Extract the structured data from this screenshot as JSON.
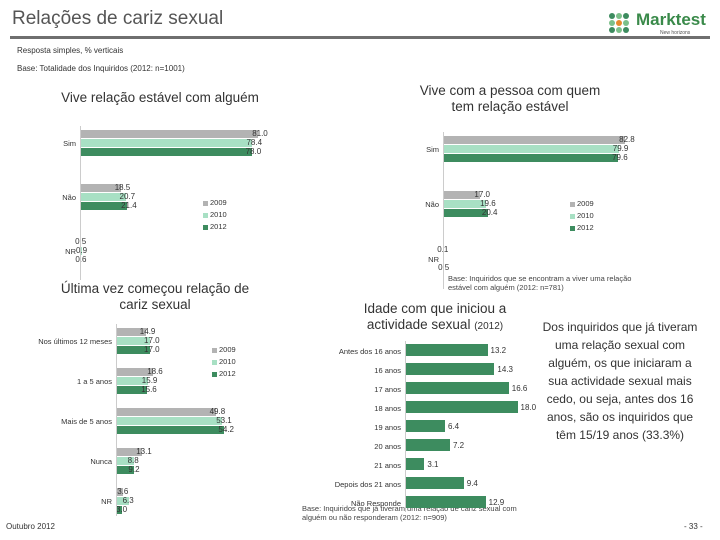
{
  "header": {
    "title": "Relações de cariz sexual",
    "subtitle1": "Resposta simples, % verticais",
    "subtitle2": "Base: Totalidade dos Inquiridos (2012: n=1001)",
    "logo_name": "Marktest",
    "logo_tagline": "New horizons"
  },
  "colors": {
    "s2009": "#b3b3b3",
    "s2010": "#a8e0c4",
    "s2012": "#3d8c5f"
  },
  "footer": {
    "date": "Outubro 2012",
    "page": "- 33 -"
  },
  "side_text": "Dos inquiridos que já tiveram uma relação sexual com alguém, os que iniciaram a sua actividade sexual mais cedo, ou seja, antes dos 16 anos, são os inquiridos que têm 15/19 anos (33.3%)",
  "chart_data": [
    {
      "type": "bar",
      "title": "Vive relação estável com alguém",
      "legend": [
        "2009",
        "2010",
        "2012"
      ],
      "categories": [
        "Sim",
        "Não",
        "NR"
      ],
      "series": [
        {
          "name": "2009",
          "values": [
            81.0,
            18.5,
            0.5
          ],
          "labels": [
            "81.0",
            "18.5",
            "0.5"
          ]
        },
        {
          "name": "2010",
          "values": [
            78.4,
            20.7,
            0.9
          ],
          "labels": [
            "78.4",
            "20.7",
            "0.9"
          ]
        },
        {
          "name": "2012",
          "values": [
            78.0,
            21.4,
            0.6
          ],
          "labels": [
            "78.0",
            "21.4",
            "0.6"
          ]
        }
      ],
      "xlim": [
        0,
        100
      ]
    },
    {
      "type": "bar",
      "title": "Vive com a pessoa com quem tem relação estável",
      "legend": [
        "2009",
        "2010",
        "2012"
      ],
      "categories": [
        "Sim",
        "Não",
        "NR"
      ],
      "series": [
        {
          "name": "2009",
          "values": [
            82.8,
            17.0,
            0.1
          ],
          "labels": [
            "82.8",
            "17.0",
            "0.1"
          ]
        },
        {
          "name": "2010",
          "values": [
            79.9,
            19.6,
            0
          ],
          "labels": [
            "79.9",
            "19.6",
            ""
          ]
        },
        {
          "name": "2012",
          "values": [
            79.6,
            20.4,
            0.5
          ],
          "labels": [
            "79.6",
            "20.4",
            "0.5"
          ]
        }
      ],
      "xlim": [
        0,
        100
      ],
      "note": "Base: Inquiridos que se encontram a viver uma relação estável com alguém (2012: n=781)"
    },
    {
      "type": "bar",
      "title": "Última vez começou relação de cariz sexual",
      "legend": [
        "2009",
        "2010",
        "2012"
      ],
      "categories": [
        "Nos últimos 12 meses",
        "1 a 5 anos",
        "Mais de 5 anos",
        "Nunca",
        "NR"
      ],
      "series": [
        {
          "name": "2009",
          "values": [
            14.9,
            18.6,
            49.8,
            13.1,
            3.6
          ],
          "labels": [
            "14.9",
            "18.6",
            "49.8",
            "13.1",
            "3.6"
          ]
        },
        {
          "name": "2010",
          "values": [
            17.0,
            15.9,
            53.1,
            8.8,
            6.3
          ],
          "labels": [
            "17.0",
            "15.9",
            "53.1",
            "8.8",
            "6.3"
          ]
        },
        {
          "name": "2012",
          "values": [
            17.0,
            15.6,
            54.2,
            9.2,
            3.0
          ],
          "labels": [
            "17.0",
            "15.6",
            "54.2",
            "9.2",
            "3.0"
          ]
        }
      ],
      "xlim": [
        0,
        100
      ]
    },
    {
      "type": "bar",
      "title": "Idade com que iniciou a actividade sexual",
      "title_suffix": "(2012)",
      "categories": [
        "Antes dos 16 anos",
        "16 anos",
        "17 anos",
        "18 anos",
        "19 anos",
        "20 anos",
        "21 anos",
        "Depois dos 21 anos",
        "Não Responde"
      ],
      "series": [
        {
          "name": "2012",
          "values": [
            13.2,
            14.3,
            16.6,
            18.0,
            6.4,
            7.2,
            3.1,
            9.4,
            12.9
          ],
          "labels": [
            "13.2",
            "14.3",
            "16.6",
            "18.0",
            "6.4",
            "7.2",
            "3.1",
            "9.4",
            "12.9"
          ]
        }
      ],
      "xlim": [
        0,
        20
      ],
      "note": "Base: Inquiridos que já tiveram uma relação de cariz sexual com alguém ou não responderam (2012: n=909)"
    }
  ]
}
